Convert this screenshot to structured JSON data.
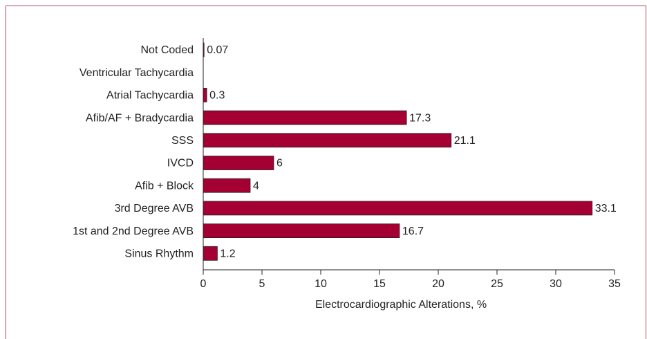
{
  "chart_data": {
    "type": "hbar",
    "x_label": "Electrocardiographic Alterations, %",
    "categories": [
      "Not Coded",
      "Ventricular Tachycardia",
      "Atrial Tachycardia",
      "Afib/AF + Bradycardia",
      "SSS",
      "IVCD",
      "Afib + Block",
      "3rd Degree AVB",
      "1st and 2nd Degree AVB",
      "Sinus Rhythm"
    ],
    "values": [
      0.07,
      null,
      0.3,
      17.3,
      21.1,
      6,
      4,
      33.1,
      16.7,
      1.2
    ],
    "color": "#a50033",
    "xlim": [
      0,
      35
    ],
    "xticks": [
      0,
      5,
      10,
      15,
      20,
      25,
      30,
      35
    ]
  }
}
